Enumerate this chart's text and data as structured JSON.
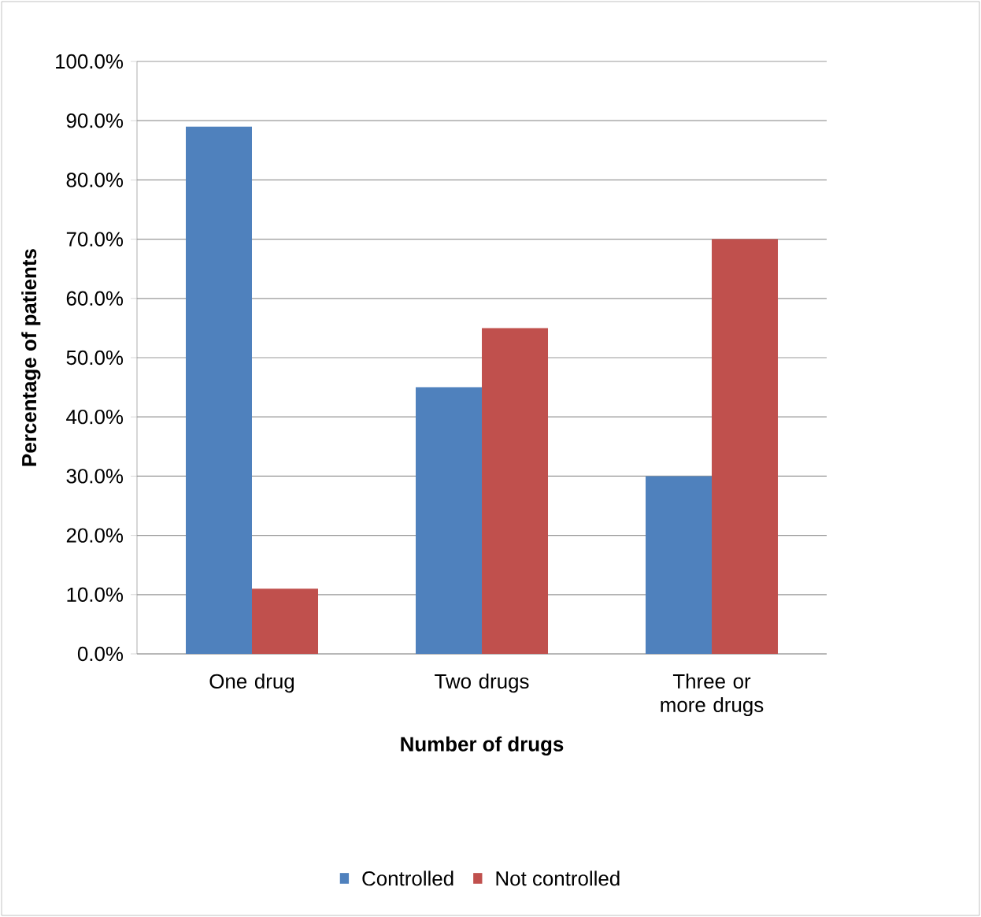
{
  "chart_data": {
    "type": "bar",
    "xlabel": "Number of drugs",
    "ylabel": "Percentage of patients",
    "categories": [
      "One drug",
      "Two drugs",
      "Three or more drugs"
    ],
    "series": [
      {
        "name": "Controlled",
        "color": "#4f81bd",
        "values": [
          89,
          45,
          30
        ]
      },
      {
        "name": "Not controlled",
        "color": "#c0504d",
        "values": [
          11,
          55,
          70
        ]
      }
    ],
    "ylim": [
      0,
      100
    ],
    "yticks": [
      {
        "value": 0,
        "label": "0.0%"
      },
      {
        "value": 10,
        "label": "10.0%"
      },
      {
        "value": 20,
        "label": "20.0%"
      },
      {
        "value": 30,
        "label": "30.0%"
      },
      {
        "value": 40,
        "label": "40.0%"
      },
      {
        "value": 50,
        "label": "50.0%"
      },
      {
        "value": 60,
        "label": "60.0%"
      },
      {
        "value": 70,
        "label": "70.0%"
      },
      {
        "value": 80,
        "label": "80.0%"
      },
      {
        "value": 90,
        "label": "90.0%"
      },
      {
        "value": 100,
        "label": "100.0%"
      }
    ],
    "grid": "y",
    "legend": "bottom"
  }
}
